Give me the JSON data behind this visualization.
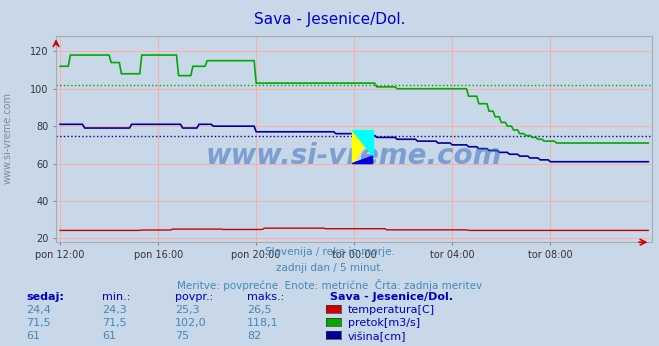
{
  "title": "Sava - Jesenice/Dol.",
  "title_color": "#0000cc",
  "bg_color": "#c8d8e8",
  "plot_bg_color": "#c8d8e8",
  "grid_color": "#ffaaaa",
  "x_ticks_labels": [
    "pon 12:00",
    "pon 16:00",
    "pon 20:00",
    "tor 00:00",
    "tor 04:00",
    "tor 08:00"
  ],
  "x_ticks_positions": [
    0,
    48,
    96,
    144,
    192,
    240
  ],
  "y_ticks": [
    20,
    40,
    60,
    80,
    100,
    120
  ],
  "ylim": [
    18,
    128
  ],
  "xlim": [
    -2,
    290
  ],
  "n_points": 289,
  "temp_color": "#cc0000",
  "pretok_color": "#00aa00",
  "visina_color": "#000099",
  "pretok_avg": 102.0,
  "visina_avg": 75,
  "watermark": "www.si-vreme.com",
  "subtitle1": "Slovenija / reke in morje.",
  "subtitle2": "zadnji dan / 5 minut.",
  "subtitle3": "Meritve: povprečne  Enote: metrične  Črta: zadnja meritev",
  "subtitle_color": "#4488bb",
  "table_header_color": "#0000bb",
  "table_value_color": "#4488bb",
  "legend_label_color": "#0000bb",
  "table_headers": [
    "sedaj:",
    "min.:",
    "povpr.:",
    "maks.:"
  ],
  "temp_row": [
    "24,4",
    "24,3",
    "25,3",
    "26,5"
  ],
  "pretok_row": [
    "71,5",
    "71,5",
    "102,0",
    "118,1"
  ],
  "visina_row": [
    "61",
    "61",
    "75",
    "82"
  ],
  "legend_title": "Sava - Jesenice/Dol.",
  "legend_labels": [
    "temperatura[C]",
    "pretok[m3/s]",
    "višina[cm]"
  ],
  "legend_colors": [
    "#cc0000",
    "#00aa00",
    "#000099"
  ]
}
